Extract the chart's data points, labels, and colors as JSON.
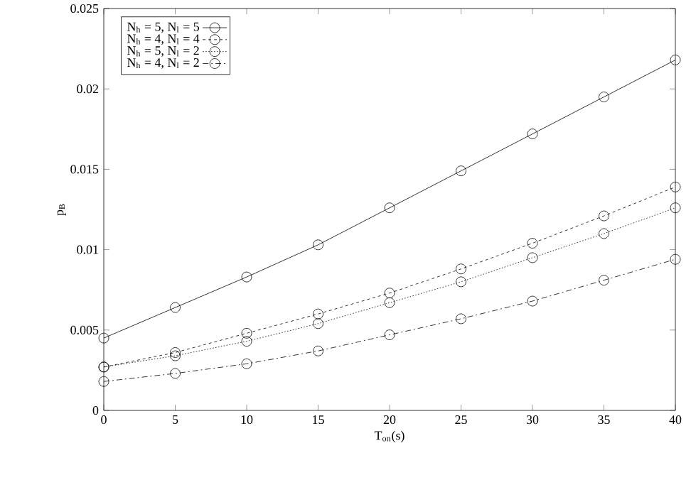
{
  "chart_data": {
    "type": "line",
    "xlabel": "T$_{on}$(s)",
    "ylabel": "p$_{B}$",
    "x": [
      0,
      5,
      10,
      15,
      20,
      25,
      30,
      35,
      40
    ],
    "xlim": [
      0,
      40
    ],
    "ylim": [
      0,
      0.025
    ],
    "xticks": [
      0,
      5,
      10,
      15,
      20,
      25,
      30,
      35,
      40
    ],
    "yticks": [
      0,
      0.005,
      0.01,
      0.015,
      0.02,
      0.025
    ],
    "legend": "top left",
    "marker": "circle",
    "grid": false,
    "series": [
      {
        "name": "N$_{h}$ = 5, N$_{l}$ = 5",
        "color": "#000000",
        "line_style": "solid",
        "values": [
          0.0045,
          0.0064,
          0.0083,
          0.0103,
          0.0126,
          0.0149,
          0.0172,
          0.0195,
          0.0218
        ]
      },
      {
        "name": "N$_{h}$ = 4, N$_{l}$ = 4",
        "color": "#000000",
        "line_style": "dashed",
        "values": [
          0.0027,
          0.0036,
          0.0048,
          0.006,
          0.0073,
          0.0088,
          0.0104,
          0.0121,
          0.0139
        ]
      },
      {
        "name": "N$_{h}$ = 5, N$_{l}$ = 2",
        "color": "#000000",
        "line_style": "dotted",
        "values": [
          0.0027,
          0.0034,
          0.0043,
          0.0054,
          0.0067,
          0.008,
          0.0095,
          0.011,
          0.0126
        ]
      },
      {
        "name": "N$_{h}$ = 4, N$_{l}$ = 2",
        "color": "#000000",
        "line_style": "dashdot",
        "values": [
          0.0018,
          0.0023,
          0.0029,
          0.0037,
          0.0047,
          0.0057,
          0.0068,
          0.0081,
          0.0094
        ]
      }
    ]
  }
}
